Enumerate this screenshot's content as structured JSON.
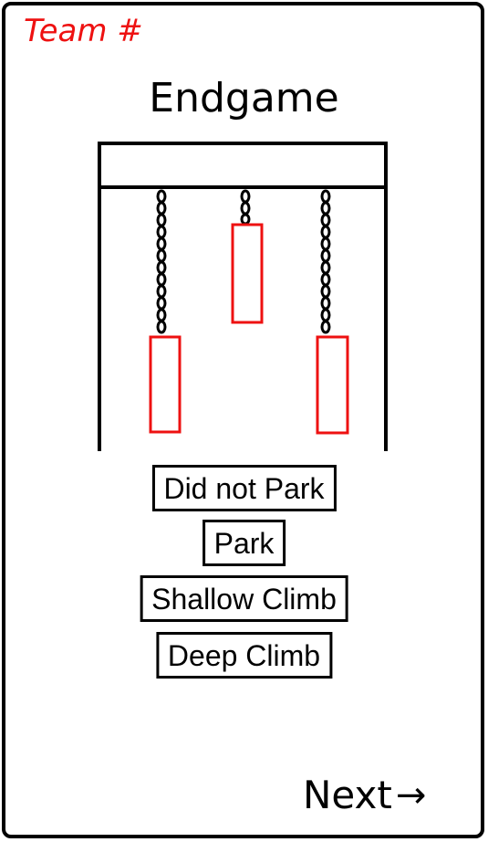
{
  "header": {
    "team_label": "Team #",
    "title": "Endgame"
  },
  "options": [
    {
      "label": "Did not Park"
    },
    {
      "label": "Park"
    },
    {
      "label": "Shallow Climb"
    },
    {
      "label": "Deep Climb"
    }
  ],
  "footer": {
    "next_label": "Next",
    "next_arrow": "→"
  },
  "colors": {
    "accent": "#ee1111",
    "ink": "#000000"
  }
}
